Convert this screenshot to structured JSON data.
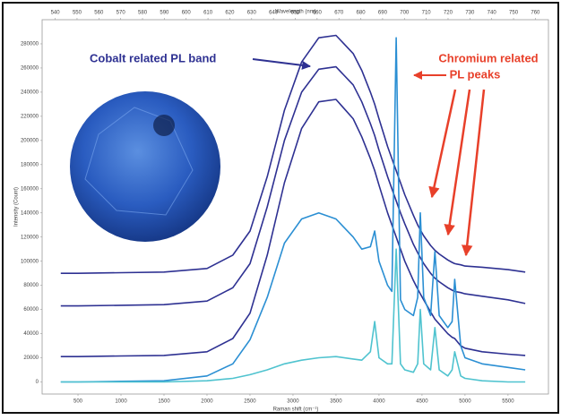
{
  "chart_data": {
    "type": "line",
    "title_top": "Wavelength (nm)",
    "xlabel": "Raman shift (cm⁻¹)",
    "ylabel": "Intensity (Count)",
    "annotations": [
      "Cobalt related PL band",
      "Chromium related",
      "PL peaks"
    ],
    "x": [
      300,
      500,
      1000,
      1500,
      2000,
      2300,
      2500,
      2700,
      2900,
      3100,
      3300,
      3500,
      3700,
      3800,
      3900,
      3950,
      4000,
      4100,
      4150,
      4200,
      4250,
      4300,
      4400,
      4450,
      4480,
      4520,
      4600,
      4650,
      4700,
      4800,
      4850,
      4880,
      4950,
      5000,
      5200,
      5500,
      5700
    ],
    "xlim": [
      83,
      5970
    ],
    "xticks": [
      500,
      1000,
      1500,
      2000,
      2500,
      3000,
      3500,
      4000,
      4500,
      5000,
      5500
    ],
    "x2lim": [
      534,
      766
    ],
    "x2ticks": [
      540,
      550,
      560,
      570,
      580,
      590,
      600,
      610,
      620,
      630,
      640,
      650,
      660,
      670,
      680,
      690,
      700,
      710,
      720,
      730,
      740,
      750,
      760
    ],
    "ylim": [
      -10000,
      300000
    ],
    "yticks": [
      0,
      20000,
      40000,
      60000,
      80000,
      100000,
      120000,
      140000,
      160000,
      180000,
      200000,
      220000,
      240000,
      260000,
      280000
    ],
    "series": [
      {
        "color": "#2e3192",
        "values": [
          90000,
          90000,
          90500,
          91000,
          94000,
          105000,
          125000,
          170000,
          225000,
          265000,
          285000,
          287000,
          272000,
          258000,
          240000,
          230000,
          218000,
          195000,
          185000,
          175000,
          165000,
          155000,
          138000,
          130000,
          126000,
          121000,
          113000,
          109000,
          106000,
          101000,
          99000,
          98000,
          97000,
          96000,
          95000,
          93000,
          91000
        ]
      },
      {
        "color": "#2e3192",
        "values": [
          63000,
          63000,
          63500,
          64000,
          67000,
          78000,
          98000,
          145000,
          200000,
          240000,
          259000,
          261000,
          246000,
          232000,
          214000,
          204000,
          192000,
          170000,
          160000,
          150000,
          140000,
          131000,
          114000,
          107000,
          103000,
          98000,
          90000,
          86000,
          83000,
          78000,
          76000,
          75000,
          74000,
          73000,
          71000,
          68000,
          65000
        ]
      },
      {
        "color": "#2e3192",
        "values": [
          21000,
          21000,
          21500,
          22000,
          25000,
          36000,
          57000,
          105000,
          165000,
          210000,
          232000,
          234000,
          218000,
          203000,
          185000,
          175000,
          163000,
          140000,
          130000,
          120000,
          110000,
          100000,
          84000,
          77000,
          73000,
          68000,
          58000,
          52000,
          48000,
          40000,
          37000,
          36000,
          30000,
          28000,
          25000,
          23000,
          22000
        ]
      },
      {
        "color": "#2b8fd3",
        "values": [
          0,
          0,
          500,
          1000,
          5000,
          15000,
          35000,
          70000,
          115000,
          135000,
          140000,
          135000,
          120000,
          110000,
          112000,
          125000,
          100000,
          80000,
          75000,
          285000,
          68000,
          60000,
          55000,
          70000,
          140000,
          70000,
          55000,
          108000,
          55000,
          45000,
          50000,
          85000,
          30000,
          20000,
          15000,
          12000,
          10000
        ]
      },
      {
        "color": "#4fc3cf",
        "values": [
          0,
          0,
          0,
          0,
          1000,
          3000,
          6000,
          10000,
          15000,
          18000,
          20000,
          21000,
          19000,
          18000,
          25000,
          50000,
          20000,
          15000,
          15000,
          110000,
          15000,
          10000,
          8000,
          15000,
          60000,
          15000,
          10000,
          45000,
          10000,
          5000,
          10000,
          25000,
          5000,
          3000,
          1000,
          0,
          0
        ]
      }
    ]
  }
}
